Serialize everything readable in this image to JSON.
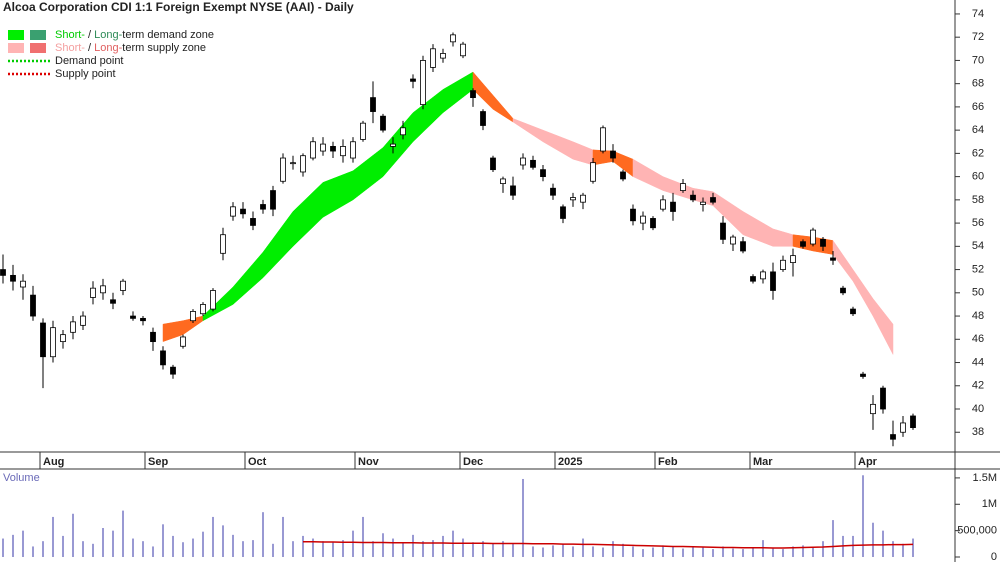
{
  "chart_data": {
    "type": "candlestick",
    "title": "Alcoa Corporation CDI 1:1 Foreign Exempt NYSE (AAI) - Daily",
    "xlim": [
      -0.3,
      94.7
    ],
    "xticks": [
      {
        "value": 3.7,
        "label": "Aug"
      },
      {
        "value": 14.2,
        "label": "Sep"
      },
      {
        "value": 24.2,
        "label": "Oct"
      },
      {
        "value": 35.2,
        "label": "Nov"
      },
      {
        "value": 45.7,
        "label": "Dec"
      },
      {
        "value": 55.2,
        "label": "2025"
      },
      {
        "value": 65.2,
        "label": "Feb"
      },
      {
        "value": 74.7,
        "label": "Mar"
      },
      {
        "value": 85.2,
        "label": "Apr"
      }
    ],
    "ylim": [
      36.3,
      75.2
    ],
    "yticks": [
      38,
      40,
      42,
      44,
      46,
      48,
      50,
      52,
      54,
      56,
      58,
      60,
      62,
      64,
      66,
      68,
      70,
      72,
      74
    ],
    "up_color": "#ffffff",
    "down_color": "#000000",
    "candles": [
      [
        52,
        53.3,
        50.8,
        51.5
      ],
      [
        51.5,
        52.4,
        50.2,
        51
      ],
      [
        50.5,
        51.6,
        49.4,
        51
      ],
      [
        49.8,
        50.6,
        47.6,
        48
      ],
      [
        47.4,
        47.8,
        41.8,
        44.5
      ],
      [
        44.5,
        47.6,
        44,
        47
      ],
      [
        45.8,
        46.8,
        45.2,
        46.4
      ],
      [
        46.6,
        48,
        46,
        47.5
      ],
      [
        47.2,
        48.4,
        46.8,
        48
      ],
      [
        49.6,
        51,
        49,
        50.4
      ],
      [
        50,
        51.2,
        49.4,
        50.6
      ],
      [
        49.4,
        50,
        48.6,
        49.1
      ],
      [
        50.2,
        51.2,
        49.8,
        51
      ],
      [
        48,
        48.4,
        47.6,
        47.8
      ],
      [
        47.8,
        48,
        47.2,
        47.6
      ],
      [
        46.6,
        47,
        45,
        45.8
      ],
      [
        45,
        45.4,
        43.4,
        43.8
      ],
      [
        43.6,
        43.8,
        42.6,
        43
      ],
      [
        45.4,
        46.4,
        45.2,
        46.2
      ],
      [
        47.6,
        48.6,
        47.4,
        48.4
      ],
      [
        48.2,
        49.2,
        48,
        49
      ],
      [
        48.6,
        50.4,
        48.4,
        50.2
      ],
      [
        53.4,
        55.6,
        52.8,
        55
      ],
      [
        56.6,
        57.8,
        56.2,
        57.4
      ],
      [
        57.2,
        57.8,
        56.4,
        56.8
      ],
      [
        56.4,
        57,
        55.4,
        55.8
      ],
      [
        57.6,
        58,
        56.8,
        57.2
      ],
      [
        58.8,
        59.2,
        56.6,
        57.2
      ],
      [
        59.6,
        62,
        59.4,
        61.6
      ],
      [
        61.2,
        61.8,
        60.6,
        61.2
      ],
      [
        60.4,
        62,
        60,
        61.8
      ],
      [
        61.6,
        63.4,
        61.4,
        63
      ],
      [
        62.2,
        63.4,
        61.8,
        62.8
      ],
      [
        62.6,
        63,
        61.6,
        62.2
      ],
      [
        61.8,
        63.2,
        61.2,
        62.6
      ],
      [
        61.6,
        63.4,
        61.2,
        63
      ],
      [
        63.2,
        64.8,
        63,
        64.6
      ],
      [
        66.8,
        68.2,
        64.6,
        65.6
      ],
      [
        65.2,
        65.4,
        63.8,
        64
      ],
      [
        62.6,
        63.4,
        62,
        62.8
      ],
      [
        63.6,
        64.8,
        63.2,
        64.2
      ],
      [
        68.4,
        68.8,
        67.6,
        68.2
      ],
      [
        66.2,
        70.4,
        65.8,
        70
      ],
      [
        69.4,
        71.4,
        69,
        71
      ],
      [
        70.2,
        71,
        69.8,
        70.6
      ],
      [
        71.6,
        72.4,
        71.2,
        72.2
      ],
      [
        70.4,
        71.6,
        70.2,
        71.4
      ],
      [
        67.4,
        67.6,
        66,
        66.8
      ],
      [
        65.6,
        65.8,
        64,
        64.4
      ],
      [
        61.6,
        61.8,
        60.4,
        60.6
      ],
      [
        59.4,
        60,
        58.6,
        59.8
      ],
      [
        59.2,
        60,
        58,
        58.4
      ],
      [
        61,
        62,
        60.6,
        61.6
      ],
      [
        61.4,
        61.8,
        60.6,
        60.8
      ],
      [
        60.6,
        61,
        59.6,
        60
      ],
      [
        59,
        59.4,
        58,
        58.4
      ],
      [
        57.4,
        57.6,
        56,
        56.4
      ],
      [
        58,
        58.6,
        57.4,
        58.2
      ],
      [
        57.8,
        58.6,
        57.2,
        58.4
      ],
      [
        59.6,
        61.6,
        59.4,
        61.2
      ],
      [
        62.2,
        64.4,
        62,
        64.2
      ],
      [
        62.2,
        62.8,
        61.2,
        61.6
      ],
      [
        60.4,
        60.6,
        59.6,
        59.8
      ],
      [
        57.2,
        57.6,
        55.8,
        56.2
      ],
      [
        56,
        57,
        55.4,
        56.6
      ],
      [
        56.4,
        56.6,
        55.4,
        55.6
      ],
      [
        57.2,
        58.4,
        57,
        58
      ],
      [
        57.8,
        58.6,
        56.2,
        57
      ],
      [
        58.8,
        59.8,
        58.6,
        59.4
      ],
      [
        58.4,
        58.8,
        57.8,
        58
      ],
      [
        57.6,
        58.2,
        57,
        57.8
      ],
      [
        58.2,
        58.6,
        57.6,
        57.8
      ],
      [
        56,
        56.6,
        54.2,
        54.6
      ],
      [
        54.2,
        55,
        53.6,
        54.8
      ],
      [
        54.4,
        54.8,
        53.4,
        53.6
      ],
      [
        51.4,
        51.6,
        50.8,
        51
      ],
      [
        51.2,
        52,
        50.8,
        51.8
      ],
      [
        51.8,
        52.6,
        49.4,
        50.2
      ],
      [
        52,
        53.2,
        51.8,
        52.8
      ],
      [
        52.6,
        53.8,
        51.4,
        53.2
      ],
      [
        54.4,
        54.6,
        53.8,
        54
      ],
      [
        54.2,
        55.6,
        54,
        55.4
      ],
      [
        54.6,
        54.8,
        53.6,
        54
      ],
      [
        53,
        53.6,
        52.4,
        52.8
      ],
      [
        50.4,
        50.6,
        49.8,
        50
      ],
      [
        48.6,
        48.8,
        48,
        48.2
      ],
      [
        43,
        43.2,
        42.6,
        42.8
      ],
      [
        39.6,
        41.2,
        38.2,
        40.4
      ],
      [
        41.8,
        42,
        39.6,
        40
      ],
      [
        37.8,
        39,
        36.8,
        37.4
      ],
      [
        38,
        39.4,
        37.6,
        38.8
      ],
      [
        39.4,
        39.6,
        38.2,
        38.4
      ]
    ],
    "zones": [
      {
        "color": "#ff6a20",
        "x": [
          16,
          18,
          20
        ],
        "upper": [
          47.3,
          47.6,
          48
        ],
        "lower": [
          45.8,
          46.4,
          47.6
        ]
      },
      {
        "color": "#00ee00",
        "x": [
          20,
          23,
          26,
          29,
          32,
          35,
          38,
          41,
          44,
          47
        ],
        "upper": [
          48,
          50.5,
          53.5,
          57,
          59.5,
          60.5,
          62.5,
          65.5,
          67.5,
          69
        ],
        "lower": [
          47.6,
          49,
          51.3,
          54,
          56.5,
          58,
          60,
          63,
          65.5,
          67.5
        ]
      },
      {
        "color": "#ff6a20",
        "x": [
          47,
          49,
          51
        ],
        "upper": [
          69,
          67,
          65
        ],
        "lower": [
          67.5,
          65.8,
          64.7
        ]
      },
      {
        "color": "#ffb4b4",
        "x": [
          51,
          54,
          57,
          59
        ],
        "upper": [
          65,
          64,
          63,
          62.3
        ],
        "lower": [
          64.7,
          63,
          61.5,
          61
        ]
      },
      {
        "color": "#ff6a20",
        "x": [
          59,
          61,
          63
        ],
        "upper": [
          62.3,
          62.2,
          61.5
        ],
        "lower": [
          61,
          61.3,
          60
        ]
      },
      {
        "color": "#ffb4b4",
        "x": [
          63,
          66,
          69,
          71,
          74,
          77,
          79
        ],
        "upper": [
          61.5,
          60,
          59,
          58.7,
          57,
          55.5,
          55
        ],
        "lower": [
          60,
          58.8,
          58,
          57.5,
          55,
          54,
          54
        ]
      },
      {
        "color": "#ff6a20",
        "x": [
          79,
          81,
          83
        ],
        "upper": [
          55,
          54.8,
          54.5
        ],
        "lower": [
          54,
          53.6,
          53.3
        ]
      },
      {
        "color": "#ffb4b4",
        "x": [
          83,
          85,
          87,
          89
        ],
        "upper": [
          54.5,
          52,
          49.5,
          47.3
        ],
        "lower": [
          53.3,
          51,
          48,
          44.7
        ]
      }
    ],
    "legend": [
      {
        "swatches": [
          "#00ee00",
          "#3aa070"
        ],
        "parts": [
          {
            "text": "Short-",
            "color": "#00cc00"
          },
          {
            "text": " / ",
            "color": "#222222"
          },
          {
            "text": "Long-",
            "color": "#2e8b57"
          },
          {
            "text": "term demand zone",
            "color": "#222222"
          }
        ]
      },
      {
        "swatches": [
          "#ffb4b4",
          "#f07070"
        ],
        "parts": [
          {
            "text": "Short-",
            "color": "#f4a0a0"
          },
          {
            "text": " / ",
            "color": "#222222"
          },
          {
            "text": "Long-",
            "color": "#e06060"
          },
          {
            "text": "term supply zone",
            "color": "#222222"
          }
        ]
      },
      {
        "line": "#00cc00",
        "parts": [
          {
            "text": "Demand point",
            "color": "#222222"
          }
        ]
      },
      {
        "line": "#dd0000",
        "parts": [
          {
            "text": "Supply point",
            "color": "#222222"
          }
        ]
      }
    ],
    "volume": {
      "label": "Volume",
      "color": "#8080c8",
      "ma_color": "#cc0000",
      "ylim": [
        -95000,
        1650000
      ],
      "yticks": [
        {
          "value": 1500000,
          "label": "1.5M"
        },
        {
          "value": 1000000,
          "label": "1M"
        },
        {
          "value": 500000,
          "label": "500,000"
        },
        0
      ],
      "values": [
        350000,
        420000,
        500000,
        200000,
        300000,
        760000,
        400000,
        820000,
        300000,
        250000,
        550000,
        500000,
        880000,
        350000,
        300000,
        200000,
        620000,
        400000,
        280000,
        350000,
        480000,
        760000,
        600000,
        420000,
        300000,
        320000,
        850000,
        250000,
        760000,
        300000,
        400000,
        350000,
        300000,
        280000,
        320000,
        500000,
        760000,
        300000,
        450000,
        350000,
        280000,
        420000,
        300000,
        320000,
        400000,
        500000,
        350000,
        280000,
        300000,
        260000,
        300000,
        250000,
        1480000,
        200000,
        180000,
        220000,
        250000,
        200000,
        350000,
        200000,
        180000,
        300000,
        250000,
        200000,
        150000,
        180000,
        220000,
        200000,
        160000,
        200000,
        180000,
        150000,
        200000,
        160000,
        150000,
        180000,
        320000,
        160000,
        150000,
        200000,
        220000,
        180000,
        300000,
        700000,
        400000,
        400000,
        1550000,
        650000,
        500000,
        300000,
        250000,
        350000
      ],
      "ma": [
        null,
        null,
        null,
        null,
        null,
        null,
        null,
        null,
        null,
        null,
        null,
        null,
        null,
        null,
        null,
        null,
        null,
        null,
        null,
        null,
        null,
        null,
        null,
        null,
        null,
        null,
        null,
        null,
        null,
        null,
        290000,
        290000,
        285000,
        285000,
        280000,
        280000,
        275000,
        275000,
        275000,
        270000,
        270000,
        270000,
        265000,
        265000,
        265000,
        260000,
        260000,
        260000,
        260000,
        255000,
        255000,
        255000,
        255000,
        250000,
        250000,
        250000,
        245000,
        245000,
        240000,
        240000,
        235000,
        230000,
        225000,
        220000,
        215000,
        210000,
        205000,
        200000,
        200000,
        195000,
        190000,
        185000,
        180000,
        180000,
        175000,
        175000,
        175000,
        170000,
        170000,
        175000,
        180000,
        185000,
        190000,
        200000,
        210000,
        220000,
        225000,
        230000,
        230000,
        235000,
        235000,
        240000
      ]
    }
  }
}
